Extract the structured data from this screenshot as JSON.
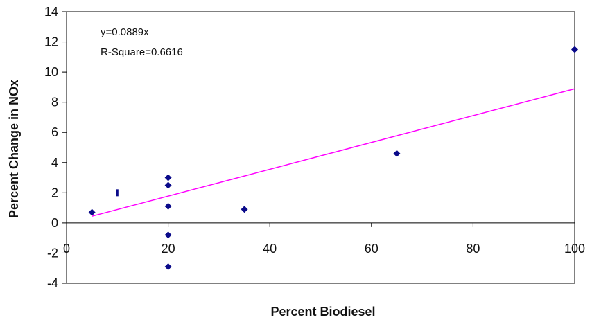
{
  "chart_data": {
    "type": "scatter",
    "xlabel": "Percent Biodiesel",
    "ylabel": "Percent Change in NOx",
    "xlim": [
      0,
      100
    ],
    "ylim": [
      -4,
      14
    ],
    "xticks": [
      "0",
      "20",
      "40",
      "60",
      "80",
      "100"
    ],
    "yticks": [
      "-4",
      "-2",
      "0",
      "2",
      "4",
      "6",
      "8",
      "10",
      "12",
      "14"
    ],
    "grid": false,
    "legend": "none",
    "annotations": [
      "y=0.0889x",
      "R-Square=0.6616"
    ],
    "series": [
      {
        "marker": "diamond",
        "color": "#0a0a8a",
        "points": [
          {
            "x": 5,
            "y": 0.7
          },
          {
            "x": 10,
            "y": 2.0
          },
          {
            "x": 20,
            "y": 3.0
          },
          {
            "x": 20,
            "y": 2.5
          },
          {
            "x": 20,
            "y": 1.1
          },
          {
            "x": 20,
            "y": -0.8
          },
          {
            "x": 20,
            "y": -2.9
          },
          {
            "x": 35,
            "y": 0.9
          },
          {
            "x": 65,
            "y": 4.6
          },
          {
            "x": 100,
            "y": 11.5
          }
        ]
      }
    ],
    "trendline": {
      "slope": 0.0889,
      "x_range": [
        5,
        100
      ],
      "color": "#ff00ff"
    }
  }
}
